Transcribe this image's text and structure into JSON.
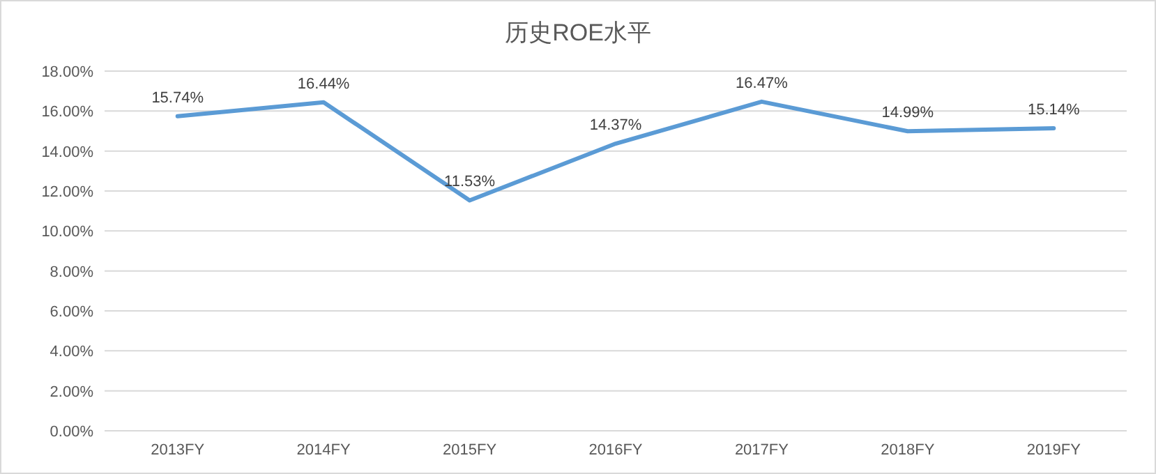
{
  "chart_data": {
    "type": "line",
    "title": "历史ROE水平",
    "categories": [
      "2013FY",
      "2014FY",
      "2015FY",
      "2016FY",
      "2017FY",
      "2018FY",
      "2019FY"
    ],
    "series": [
      {
        "color": "#5b9bd5",
        "values": [
          15.74,
          16.44,
          11.53,
          14.37,
          16.47,
          14.99,
          15.14
        ],
        "value_labels": [
          "15.74%",
          "16.44%",
          "11.53%",
          "14.37%",
          "16.47%",
          "14.99%",
          "15.14%"
        ]
      }
    ],
    "ylim": [
      0,
      18
    ],
    "yticks": [
      {
        "value": 0,
        "label": "0.00%"
      },
      {
        "value": 2,
        "label": "2.00%"
      },
      {
        "value": 4,
        "label": "4.00%"
      },
      {
        "value": 6,
        "label": "6.00%"
      },
      {
        "value": 8,
        "label": "8.00%"
      },
      {
        "value": 10,
        "label": "10.00%"
      },
      {
        "value": 12,
        "label": "12.00%"
      },
      {
        "value": 14,
        "label": "14.00%"
      },
      {
        "value": 16,
        "label": "16.00%"
      },
      {
        "value": 18,
        "label": "18.00%"
      }
    ],
    "grid": "y",
    "marker": "none",
    "line_style": "solid"
  }
}
